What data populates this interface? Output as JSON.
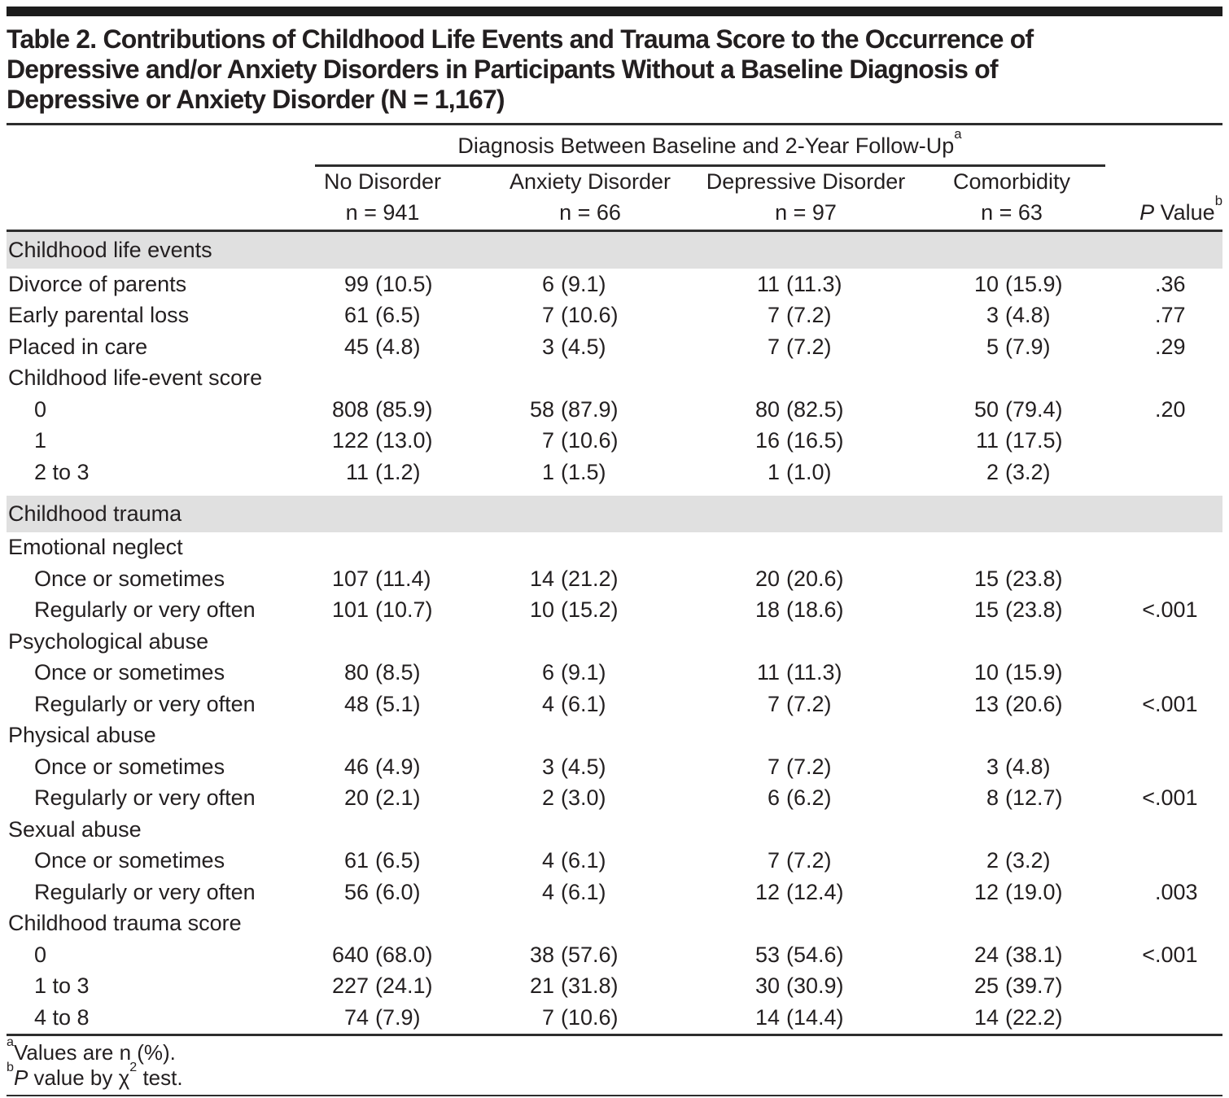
{
  "title": {
    "lines": [
      "Table 2. Contributions of Childhood Life Events and Trauma Score to the Occurrence of",
      "Depressive and/or Anxiety Disorders in Participants Without a Baseline Diagnosis of",
      "Depressive or Anxiety Disorder (N = 1,167)"
    ]
  },
  "header": {
    "spanner": "Diagnosis Between Baseline and 2-Year Follow-Up",
    "spanner_sup": "a",
    "columns": [
      {
        "key": "no-disorder",
        "label": "No Disorder",
        "n": "n = 941"
      },
      {
        "key": "anxiety-disorder",
        "label": "Anxiety Disorder",
        "n": "n = 66"
      },
      {
        "key": "depressive-disorder",
        "label": "Depressive Disorder",
        "n": "n = 97"
      },
      {
        "key": "comorbidity",
        "label": "Comorbidity",
        "n": "n = 63"
      }
    ],
    "p_italic": "P",
    "p_rest": " Value",
    "p_sup": "b"
  },
  "sections": [
    {
      "band": "Childhood life events",
      "rows": [
        {
          "label": "Divorce of parents",
          "indent": 0,
          "values": [
            [
              "99",
              "(10.5)"
            ],
            [
              "6",
              "(9.1)"
            ],
            [
              "11",
              "(11.3)"
            ],
            [
              "10",
              "(15.9)"
            ]
          ],
          "p": ".36"
        },
        {
          "label": "Early parental loss",
          "indent": 0,
          "values": [
            [
              "61",
              "(6.5)"
            ],
            [
              "7",
              "(10.6)"
            ],
            [
              "7",
              "(7.2)"
            ],
            [
              "3",
              "(4.8)"
            ]
          ],
          "p": ".77"
        },
        {
          "label": "Placed in care",
          "indent": 0,
          "values": [
            [
              "45",
              "(4.8)"
            ],
            [
              "3",
              "(4.5)"
            ],
            [
              "7",
              "(7.2)"
            ],
            [
              "5",
              "(7.9)"
            ]
          ],
          "p": ".29"
        },
        {
          "label": "Childhood life-event score",
          "indent": 0
        },
        {
          "label": "0",
          "indent": 1,
          "values": [
            [
              "808",
              "(85.9)"
            ],
            [
              "58",
              "(87.9)"
            ],
            [
              "80",
              "(82.5)"
            ],
            [
              "50",
              "(79.4)"
            ]
          ],
          "p": ".20"
        },
        {
          "label": "1",
          "indent": 1,
          "values": [
            [
              "122",
              "(13.0)"
            ],
            [
              "7",
              "(10.6)"
            ],
            [
              "16",
              "(16.5)"
            ],
            [
              "11",
              "(17.5)"
            ]
          ]
        },
        {
          "label": "2 to 3",
          "indent": 1,
          "values": [
            [
              "11",
              "(1.2)"
            ],
            [
              "1",
              "(1.5)"
            ],
            [
              "1",
              "(1.0)"
            ],
            [
              "2",
              "(3.2)"
            ]
          ]
        }
      ]
    },
    {
      "band": "Childhood trauma",
      "rows": [
        {
          "label": "Emotional neglect",
          "indent": 0
        },
        {
          "label": "Once or sometimes",
          "indent": 1,
          "values": [
            [
              "107",
              "(11.4)"
            ],
            [
              "14",
              "(21.2)"
            ],
            [
              "20",
              "(20.6)"
            ],
            [
              "15",
              "(23.8)"
            ]
          ]
        },
        {
          "label": "Regularly or very often",
          "indent": 1,
          "values": [
            [
              "101",
              "(10.7)"
            ],
            [
              "10",
              "(15.2)"
            ],
            [
              "18",
              "(18.6)"
            ],
            [
              "15",
              "(23.8)"
            ]
          ],
          "p": "<.001"
        },
        {
          "label": "Psychological abuse",
          "indent": 0
        },
        {
          "label": "Once or sometimes",
          "indent": 1,
          "values": [
            [
              "80",
              "(8.5)"
            ],
            [
              "6",
              "(9.1)"
            ],
            [
              "11",
              "(11.3)"
            ],
            [
              "10",
              "(15.9)"
            ]
          ]
        },
        {
          "label": "Regularly or very often",
          "indent": 1,
          "values": [
            [
              "48",
              "(5.1)"
            ],
            [
              "4",
              "(6.1)"
            ],
            [
              "7",
              "(7.2)"
            ],
            [
              "13",
              "(20.6)"
            ]
          ],
          "p": "<.001"
        },
        {
          "label": "Physical abuse",
          "indent": 0
        },
        {
          "label": "Once or sometimes",
          "indent": 1,
          "values": [
            [
              "46",
              "(4.9)"
            ],
            [
              "3",
              "(4.5)"
            ],
            [
              "7",
              "(7.2)"
            ],
            [
              "3",
              "(4.8)"
            ]
          ]
        },
        {
          "label": "Regularly or very often",
          "indent": 1,
          "values": [
            [
              "20",
              "(2.1)"
            ],
            [
              "2",
              "(3.0)"
            ],
            [
              "6",
              "(6.2)"
            ],
            [
              "8",
              "(12.7)"
            ]
          ],
          "p": "<.001"
        },
        {
          "label": "Sexual abuse",
          "indent": 0
        },
        {
          "label": "Once or sometimes",
          "indent": 1,
          "values": [
            [
              "61",
              "(6.5)"
            ],
            [
              "4",
              "(6.1)"
            ],
            [
              "7",
              "(7.2)"
            ],
            [
              "2",
              "(3.2)"
            ]
          ]
        },
        {
          "label": "Regularly or very often",
          "indent": 1,
          "values": [
            [
              "56",
              "(6.0)"
            ],
            [
              "4",
              "(6.1)"
            ],
            [
              "12",
              "(12.4)"
            ],
            [
              "12",
              "(19.0)"
            ]
          ],
          "p": ".003"
        },
        {
          "label": "Childhood trauma score",
          "indent": 0
        },
        {
          "label": "0",
          "indent": 1,
          "values": [
            [
              "640",
              "(68.0)"
            ],
            [
              "38",
              "(57.6)"
            ],
            [
              "53",
              "(54.6)"
            ],
            [
              "24",
              "(38.1)"
            ]
          ],
          "p": "<.001"
        },
        {
          "label": "1 to 3",
          "indent": 1,
          "values": [
            [
              "227",
              "(24.1)"
            ],
            [
              "21",
              "(31.8)"
            ],
            [
              "30",
              "(30.9)"
            ],
            [
              "25",
              "(39.7)"
            ]
          ]
        },
        {
          "label": "4 to 8",
          "indent": 1,
          "values": [
            [
              "74",
              "(7.9)"
            ],
            [
              "7",
              "(10.6)"
            ],
            [
              "14",
              "(14.4)"
            ],
            [
              "14",
              "(22.2)"
            ]
          ]
        }
      ]
    }
  ],
  "footnotes": {
    "a": {
      "sup": "a",
      "text": "Values are n (%)."
    },
    "b": {
      "sup": "b",
      "p": "P",
      "t1": " value by χ",
      "sup2": "2",
      "t2": " test."
    }
  },
  "colors": {
    "text": "#231f20",
    "rule": "#2d2d2d",
    "top_bar": "#1c1c1c",
    "section_band": "#e0e0e0",
    "background": "#ffffff"
  }
}
